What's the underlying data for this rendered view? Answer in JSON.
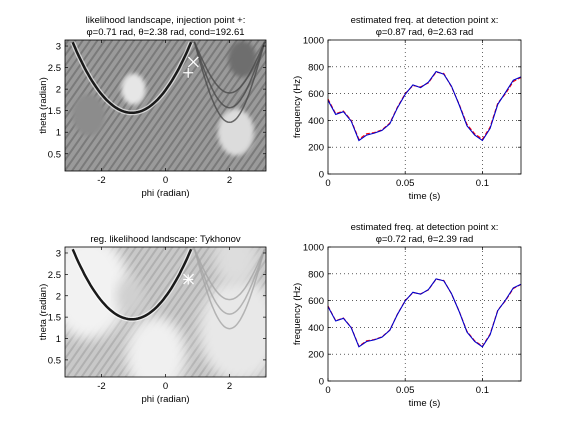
{
  "chart_data": [
    {
      "id": "ul",
      "type": "heatmap",
      "title": "likelihood landscape, injection point +:",
      "subtitle": "φ=0.71 rad, θ=2.38 rad, cond=192.61",
      "xlabel": "phi (radian)",
      "ylabel": "theta (radian)",
      "xlim": [
        -3.14,
        3.14
      ],
      "ylim": [
        0.1,
        3.14
      ],
      "xticks": [
        -2,
        0,
        2
      ],
      "yticks": [
        0.5,
        1,
        1.5,
        2,
        2.5,
        3
      ],
      "colormap": "gray",
      "markers": [
        {
          "symbol": "+",
          "x": 0.71,
          "y": 2.38
        },
        {
          "symbol": "x",
          "x": 0.87,
          "y": 2.63
        }
      ]
    },
    {
      "id": "ur",
      "type": "line",
      "title": "estimated freq. at detection point x:",
      "subtitle": "φ=0.87 rad, θ=2.63 rad",
      "xlabel": "time (s)",
      "ylabel": "frequency (Hz)",
      "xlim": [
        0,
        0.125
      ],
      "ylim": [
        0,
        1000
      ],
      "xticks": [
        0,
        0.05,
        0.1
      ],
      "yticks": [
        0,
        200,
        400,
        600,
        800,
        1000
      ],
      "grid": true,
      "series": [
        {
          "color": "#ff0000",
          "style": "dashed",
          "x": [
            0,
            0.005,
            0.01,
            0.015,
            0.02,
            0.025,
            0.03,
            0.035,
            0.04,
            0.045,
            0.05,
            0.055,
            0.06,
            0.065,
            0.07,
            0.075,
            0.08,
            0.085,
            0.09,
            0.095,
            0.1,
            0.105,
            0.11,
            0.115,
            0.12,
            0.125
          ],
          "y": [
            560,
            450,
            470,
            400,
            260,
            300,
            310,
            330,
            380,
            500,
            600,
            660,
            650,
            680,
            760,
            750,
            650,
            520,
            370,
            300,
            260,
            350,
            530,
            600,
            690,
            720
          ]
        },
        {
          "color": "#0000cc",
          "style": "solid",
          "x": [
            0,
            0.005,
            0.01,
            0.015,
            0.02,
            0.025,
            0.03,
            0.035,
            0.04,
            0.045,
            0.05,
            0.055,
            0.06,
            0.065,
            0.07,
            0.075,
            0.08,
            0.085,
            0.09,
            0.095,
            0.1,
            0.105,
            0.11,
            0.115,
            0.12,
            0.125
          ],
          "y": [
            550,
            445,
            465,
            395,
            250,
            290,
            305,
            325,
            375,
            495,
            595,
            665,
            645,
            685,
            765,
            745,
            655,
            515,
            360,
            290,
            250,
            340,
            520,
            610,
            700,
            725
          ]
        }
      ]
    },
    {
      "id": "ll",
      "type": "heatmap",
      "title": "reg. likelihood landscape: Tykhonov",
      "subtitle": "",
      "xlabel": "phi (radian)",
      "ylabel": "theta (radian)",
      "xlim": [
        -3.14,
        3.14
      ],
      "ylim": [
        0.1,
        3.14
      ],
      "xticks": [
        -2,
        0,
        2
      ],
      "yticks": [
        0.5,
        1,
        1.5,
        2,
        2.5,
        3
      ],
      "colormap": "gray",
      "markers": [
        {
          "symbol": "+",
          "x": 0.71,
          "y": 2.38
        },
        {
          "symbol": "x",
          "x": 0.72,
          "y": 2.39
        }
      ]
    },
    {
      "id": "lr",
      "type": "line",
      "title": "estimated freq. at detection point x:",
      "subtitle": "φ=0.72 rad, θ=2.39 rad",
      "xlabel": "time (s)",
      "ylabel": "frequency (Hz)",
      "xlim": [
        0,
        0.125
      ],
      "ylim": [
        0,
        1000
      ],
      "xticks": [
        0,
        0.05,
        0.1
      ],
      "yticks": [
        0,
        200,
        400,
        600,
        800,
        1000
      ],
      "grid": true,
      "series": [
        {
          "color": "#ff0000",
          "style": "dashed",
          "x": [
            0,
            0.005,
            0.01,
            0.015,
            0.02,
            0.025,
            0.03,
            0.035,
            0.04,
            0.045,
            0.05,
            0.055,
            0.06,
            0.065,
            0.07,
            0.075,
            0.08,
            0.085,
            0.09,
            0.095,
            0.1,
            0.105,
            0.11,
            0.115,
            0.12,
            0.125
          ],
          "y": [
            560,
            450,
            470,
            400,
            260,
            300,
            310,
            330,
            380,
            500,
            600,
            660,
            650,
            680,
            760,
            750,
            650,
            520,
            370,
            300,
            260,
            350,
            530,
            600,
            690,
            720
          ]
        },
        {
          "color": "#0000cc",
          "style": "solid",
          "x": [
            0,
            0.005,
            0.01,
            0.015,
            0.02,
            0.025,
            0.03,
            0.035,
            0.04,
            0.045,
            0.05,
            0.055,
            0.06,
            0.065,
            0.07,
            0.075,
            0.08,
            0.085,
            0.09,
            0.095,
            0.1,
            0.105,
            0.11,
            0.115,
            0.12,
            0.125
          ],
          "y": [
            555,
            448,
            468,
            398,
            255,
            295,
            307,
            327,
            378,
            498,
            598,
            662,
            648,
            682,
            762,
            748,
            652,
            518,
            365,
            295,
            255,
            345,
            525,
            605,
            695,
            722
          ]
        }
      ]
    }
  ]
}
